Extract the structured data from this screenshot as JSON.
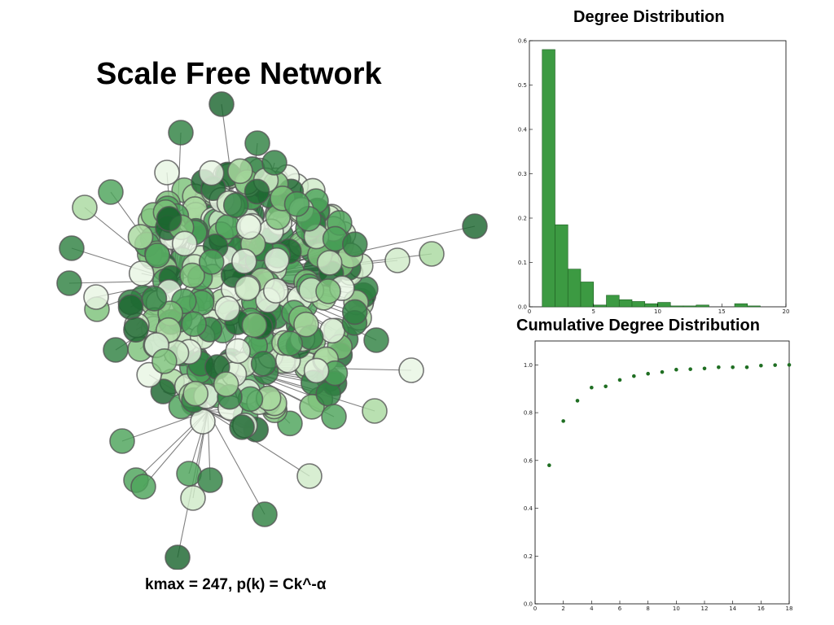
{
  "page": {
    "title": "Scale Free Network",
    "caption": "kmax = 247, p(k) = Ck^-α"
  },
  "colors": {
    "bar_fill": "#3c9a42",
    "point": "#1f6e22",
    "node_palette": [
      "#e8f5e3",
      "#cfeac8",
      "#a9d9a0",
      "#7dc27a",
      "#4da45a",
      "#2f8142",
      "#1c6630"
    ],
    "node_stroke": "#555555",
    "edge": "#555555"
  },
  "network": {
    "description_icon": "network-graph"
  },
  "chart_data": [
    {
      "type": "bar",
      "title": "Degree Distribution",
      "bin_width": 1,
      "x": [
        1,
        2,
        3,
        4,
        5,
        6,
        7,
        8,
        9,
        10,
        11,
        12,
        13,
        14,
        15,
        16,
        17,
        18
      ],
      "values": [
        0.58,
        0.185,
        0.085,
        0.056,
        0.004,
        0.026,
        0.016,
        0.012,
        0.007,
        0.01,
        0.002,
        0.002,
        0.004,
        0.0,
        0.0,
        0.007,
        0.002,
        0.0
      ],
      "xlim": [
        0,
        20
      ],
      "ylim": [
        0,
        0.6
      ],
      "xticks": [
        0,
        5,
        10,
        15,
        20
      ],
      "yticks": [
        0.0,
        0.1,
        0.2,
        0.3,
        0.4,
        0.5,
        0.6
      ],
      "grid": false
    },
    {
      "type": "scatter",
      "title": "Cumulative Degree Distribution",
      "x": [
        1,
        2,
        3,
        4,
        5,
        6,
        7,
        8,
        9,
        10,
        11,
        12,
        13,
        14,
        15,
        16,
        17,
        18
      ],
      "y": [
        0.58,
        0.765,
        0.85,
        0.905,
        0.91,
        0.937,
        0.953,
        0.963,
        0.97,
        0.98,
        0.982,
        0.985,
        0.99,
        0.99,
        0.99,
        0.997,
        0.999,
        1.0
      ],
      "xlim": [
        0,
        18
      ],
      "ylim": [
        0,
        1.1
      ],
      "xticks": [
        0,
        2,
        4,
        6,
        8,
        10,
        12,
        14,
        16,
        18
      ],
      "yticks": [
        0.0,
        0.2,
        0.4,
        0.6,
        0.8,
        1.0
      ],
      "grid": false
    }
  ]
}
